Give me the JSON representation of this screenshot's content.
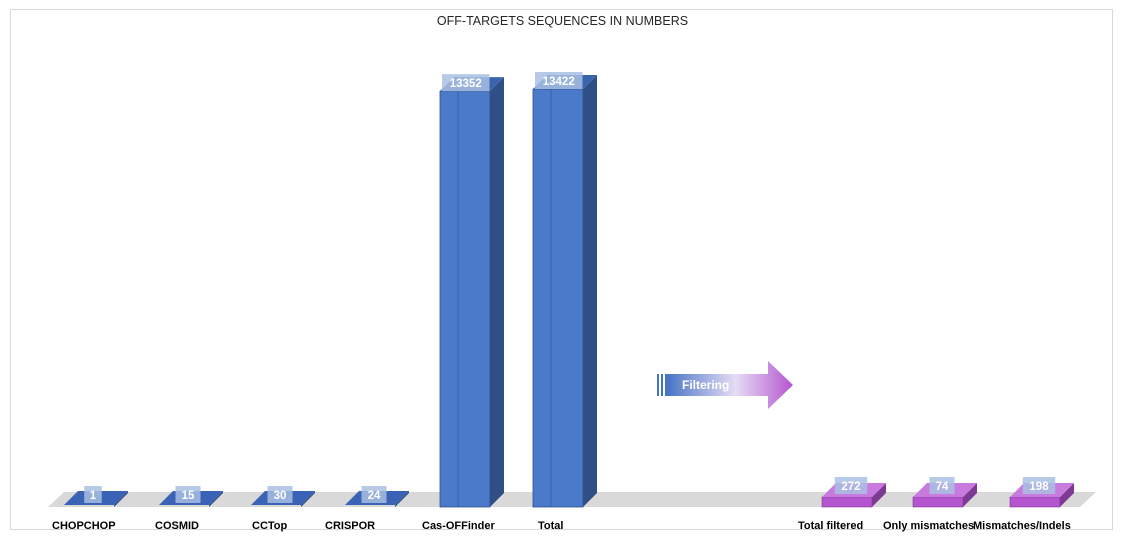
{
  "chart_data": {
    "type": "bar",
    "title": "OFF-TARGETS SEQUENCES IN NUMBERS",
    "xlabel": "",
    "ylabel": "",
    "ylim": [
      0,
      13422
    ],
    "grid": false,
    "legend": "none",
    "categories": [
      "CHOPCHOP",
      "COSMID",
      "CCTop",
      "CRISPOR",
      "Cas-OFFinder",
      "Total",
      "Total filtered",
      "Only mismatches",
      "Mismatches/Indels"
    ],
    "values": [
      1,
      15,
      30,
      24,
      13352,
      13422,
      272,
      74,
      198
    ],
    "value_labels": [
      "1",
      "15",
      "30",
      "24",
      "13352",
      "13422",
      "272",
      "74",
      "198"
    ],
    "annotation": "Filtering"
  },
  "colors": {
    "unfiltered_bar": "#4472c4",
    "filtered_bar": "#b455cf",
    "floor": "#d9d9d9"
  }
}
